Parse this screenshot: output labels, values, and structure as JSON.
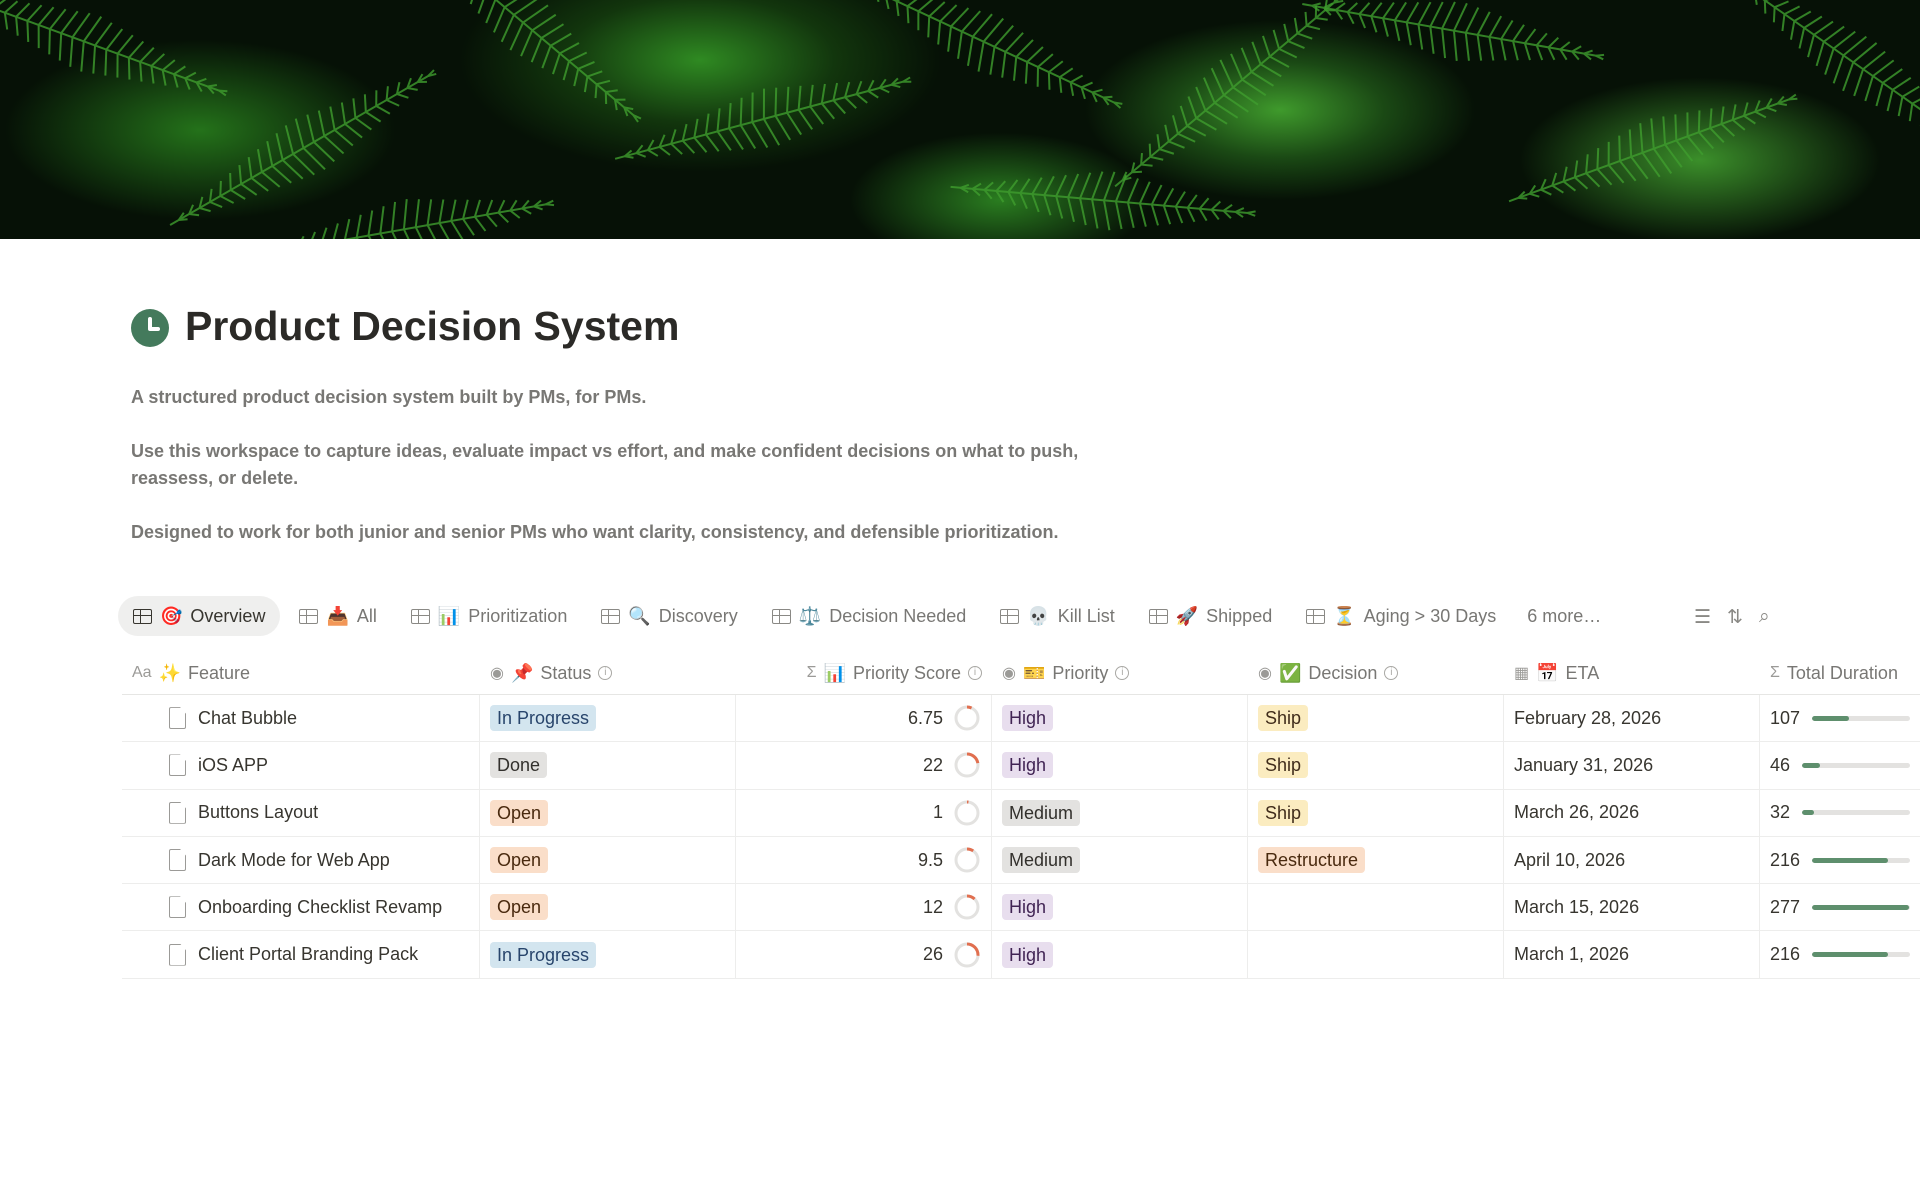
{
  "page": {
    "title": "Product Decision System",
    "icon": "clock-icon",
    "description": [
      "A structured product decision system built by PMs, for PMs.",
      "Use this workspace to capture ideas, evaluate impact vs effort, and make confident decisions on what to push, reassess, or delete.",
      "Designed to work for both junior and senior PMs who want clarity, consistency, and defensible prioritization."
    ]
  },
  "tabs": [
    {
      "emoji": "🎯",
      "label": "Overview",
      "active": true
    },
    {
      "emoji": "📥",
      "label": "All"
    },
    {
      "emoji": "📊",
      "label": "Prioritization"
    },
    {
      "emoji": "🔍",
      "label": "Discovery"
    },
    {
      "emoji": "⚖️",
      "label": "Decision Needed"
    },
    {
      "emoji": "💀",
      "label": "Kill List"
    },
    {
      "emoji": "🚀",
      "label": "Shipped"
    },
    {
      "emoji": "⏳",
      "label": "Aging > 30 Days"
    }
  ],
  "more_tabs": "6 more…",
  "toolbar": {
    "icons": [
      "filter-icon",
      "sort-icon",
      "search-icon"
    ]
  },
  "columns": [
    {
      "type": "Aa",
      "emoji": "✨",
      "label": "Feature"
    },
    {
      "type": "◉",
      "emoji": "📌",
      "label": "Status",
      "info": true
    },
    {
      "type": "Σ",
      "emoji": "📊",
      "label": "Priority Score",
      "info": true
    },
    {
      "type": "◉",
      "emoji": "🎫",
      "label": "Priority",
      "info": true
    },
    {
      "type": "◉",
      "emoji": "✅",
      "label": "Decision",
      "info": true
    },
    {
      "type": "▦",
      "emoji": "📅",
      "label": "ETA"
    },
    {
      "type": "Σ",
      "emoji": "",
      "label": "Total Duration"
    }
  ],
  "colors": {
    "In Progress": [
      "#d3e5ef",
      "#28456c"
    ],
    "Done": [
      "#e3e2e0",
      "#32302c"
    ],
    "Open": [
      "#fadec9",
      "#49290e"
    ],
    "High": [
      "#e8deee",
      "#412454"
    ],
    "Medium": [
      "#e3e2e0",
      "#32302c"
    ],
    "Ship": [
      "#fbecc0",
      "#402c1b"
    ],
    "Restructure": [
      "#fadec9",
      "#49290e"
    ],
    "ring": "#e16f4f",
    "bar": "#5e8f6d"
  },
  "rows": [
    {
      "feature": "Chat Bubble",
      "status": "In Progress",
      "score": "6.75",
      "priority": "High",
      "decision": "Ship",
      "eta": "February 28, 2026",
      "duration": "107"
    },
    {
      "feature": "iOS APP",
      "status": "Done",
      "score": "22",
      "priority": "High",
      "decision": "Ship",
      "eta": "January 31, 2026",
      "duration": "46"
    },
    {
      "feature": "Buttons Layout",
      "status": "Open",
      "score": "1",
      "priority": "Medium",
      "decision": "Ship",
      "eta": "March 26, 2026",
      "duration": "32"
    },
    {
      "feature": "Dark Mode for Web App",
      "status": "Open",
      "score": "9.5",
      "priority": "Medium",
      "decision": "Restructure",
      "eta": "April 10, 2026",
      "duration": "216"
    },
    {
      "feature": "Onboarding Checklist Revamp",
      "status": "Open",
      "score": "12",
      "priority": "High",
      "decision": "",
      "eta": "March 15, 2026",
      "duration": "277"
    },
    {
      "feature": "Client Portal Branding Pack",
      "status": "In Progress",
      "score": "26",
      "priority": "High",
      "decision": "",
      "eta": "March 1, 2026",
      "duration": "216"
    }
  ]
}
